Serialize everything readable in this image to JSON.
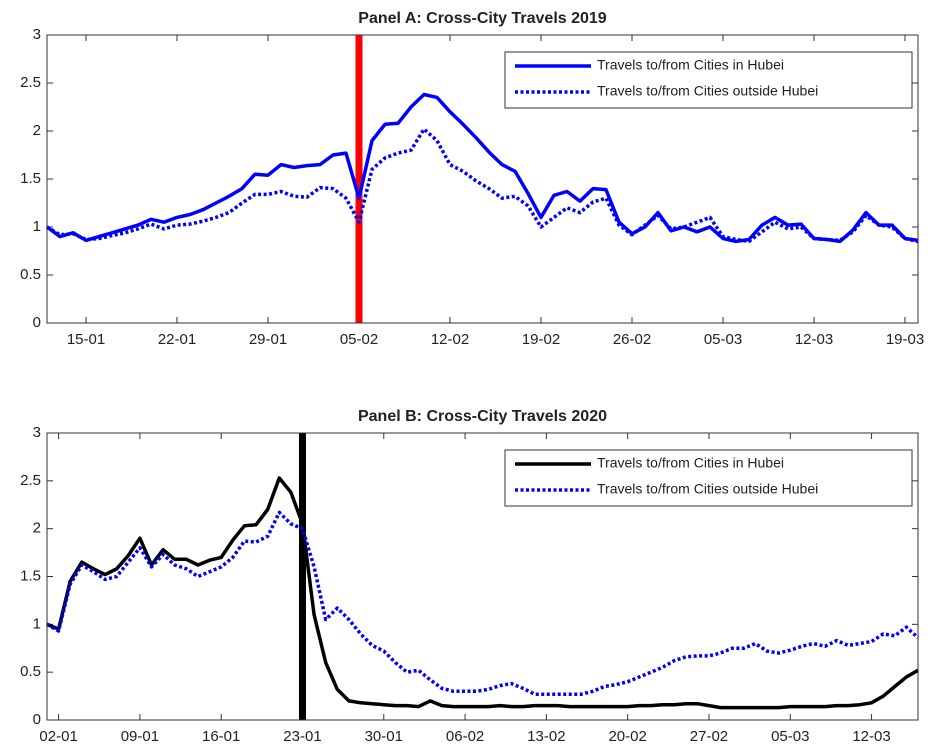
{
  "chart_data": [
    {
      "type": "line",
      "title": "Panel A: Cross-City Travels 2019",
      "categories": [
        null,
        null,
        null,
        "15-01",
        null,
        null,
        null,
        null,
        null,
        null,
        "22-01",
        null,
        null,
        null,
        null,
        null,
        null,
        "29-01",
        null,
        null,
        null,
        null,
        null,
        null,
        "05-02",
        null,
        null,
        null,
        null,
        null,
        null,
        "12-02",
        null,
        null,
        null,
        null,
        null,
        null,
        "19-02",
        null,
        null,
        null,
        null,
        null,
        null,
        "26-02",
        null,
        null,
        null,
        null,
        null,
        null,
        "05-03",
        null,
        null,
        null,
        null,
        null,
        null,
        "12-03",
        null,
        null,
        null,
        null,
        null,
        null,
        "19-03",
        null
      ],
      "series": [
        {
          "name": "Travels to/from Cities in Hubei",
          "color": "#0000ff",
          "linestyle": "solid",
          "values": [
            1.0,
            0.9,
            0.94,
            0.86,
            0.9,
            0.94,
            0.98,
            1.02,
            1.08,
            1.05,
            1.1,
            1.13,
            1.18,
            1.25,
            1.32,
            1.4,
            1.55,
            1.54,
            1.65,
            1.62,
            1.64,
            1.65,
            1.75,
            1.77,
            1.3,
            1.9,
            2.07,
            2.08,
            2.25,
            2.38,
            2.35,
            2.2,
            2.07,
            1.93,
            1.78,
            1.65,
            1.58,
            1.35,
            1.1,
            1.33,
            1.37,
            1.27,
            1.4,
            1.39,
            1.05,
            0.93,
            1.0,
            1.15,
            0.96,
            1.0,
            0.95,
            1.0,
            0.88,
            0.85,
            0.87,
            1.02,
            1.1,
            1.02,
            1.03,
            0.88,
            0.87,
            0.85,
            0.97,
            1.15,
            1.02,
            1.02,
            0.88,
            0.86
          ]
        },
        {
          "name": "Travels to/from Cities outside Hubei",
          "color": "#0000ff",
          "linestyle": "dotted",
          "values": [
            1.0,
            0.92,
            0.93,
            0.87,
            0.88,
            0.91,
            0.94,
            0.98,
            1.03,
            0.98,
            1.02,
            1.03,
            1.06,
            1.1,
            1.15,
            1.25,
            1.34,
            1.34,
            1.37,
            1.32,
            1.31,
            1.41,
            1.4,
            1.3,
            1.05,
            1.6,
            1.72,
            1.77,
            1.8,
            2.02,
            1.9,
            1.65,
            1.58,
            1.48,
            1.4,
            1.3,
            1.32,
            1.22,
            1.0,
            1.1,
            1.2,
            1.15,
            1.26,
            1.3,
            1.02,
            0.92,
            1.02,
            1.12,
            0.98,
            1.0,
            1.05,
            1.1,
            0.9,
            0.87,
            0.85,
            0.95,
            1.05,
            0.98,
            1.0,
            0.88,
            0.87,
            0.86,
            0.95,
            1.12,
            1.02,
            1.0,
            0.88,
            0.85
          ]
        }
      ],
      "ylim": [
        0,
        3
      ],
      "yticks": [
        0,
        0.5,
        1,
        1.5,
        2,
        2.5,
        3
      ],
      "vline": {
        "category": "05-02",
        "color": "#ff0000"
      },
      "legend": "upper right"
    },
    {
      "type": "line",
      "title": "Panel B: Cross-City Travels 2020",
      "categories": [
        null,
        "02-01",
        null,
        null,
        null,
        null,
        null,
        null,
        "09-01",
        null,
        null,
        null,
        null,
        null,
        null,
        "16-01",
        null,
        null,
        null,
        null,
        null,
        null,
        "23-01",
        null,
        null,
        null,
        null,
        null,
        null,
        "30-01",
        null,
        null,
        null,
        null,
        null,
        null,
        "06-02",
        null,
        null,
        null,
        null,
        null,
        null,
        "13-02",
        null,
        null,
        null,
        null,
        null,
        null,
        "20-02",
        null,
        null,
        null,
        null,
        null,
        null,
        "27-02",
        null,
        null,
        null,
        null,
        null,
        null,
        "05-03",
        null,
        null,
        null,
        null,
        null,
        null,
        "12-03",
        null,
        null,
        null,
        null
      ],
      "series": [
        {
          "name": "Travels to/from Cities in Hubei",
          "color": "#000000",
          "linestyle": "solid",
          "values": [
            1.0,
            0.95,
            1.45,
            1.65,
            1.58,
            1.52,
            1.58,
            1.72,
            1.9,
            1.62,
            1.78,
            1.68,
            1.68,
            1.62,
            1.67,
            1.7,
            1.88,
            2.03,
            2.04,
            2.2,
            2.53,
            2.38,
            2.05,
            1.1,
            0.6,
            0.32,
            0.2,
            0.18,
            0.17,
            0.16,
            0.15,
            0.15,
            0.14,
            0.2,
            0.15,
            0.14,
            0.14,
            0.14,
            0.14,
            0.15,
            0.14,
            0.14,
            0.15,
            0.15,
            0.15,
            0.14,
            0.14,
            0.14,
            0.14,
            0.14,
            0.14,
            0.15,
            0.15,
            0.16,
            0.16,
            0.17,
            0.17,
            0.15,
            0.13,
            0.13,
            0.13,
            0.13,
            0.13,
            0.13,
            0.14,
            0.14,
            0.14,
            0.14,
            0.15,
            0.15,
            0.16,
            0.18,
            0.25,
            0.35,
            0.45,
            0.52
          ]
        },
        {
          "name": "Travels to/from Cities outside Hubei",
          "color": "#0000ff",
          "linestyle": "dotted",
          "values": [
            1.0,
            0.93,
            1.42,
            1.62,
            1.55,
            1.47,
            1.5,
            1.65,
            1.8,
            1.6,
            1.73,
            1.62,
            1.58,
            1.5,
            1.55,
            1.6,
            1.7,
            1.87,
            1.86,
            1.92,
            2.17,
            2.05,
            2.0,
            1.6,
            1.05,
            1.17,
            1.05,
            0.9,
            0.78,
            0.72,
            0.6,
            0.5,
            0.52,
            0.42,
            0.33,
            0.3,
            0.3,
            0.3,
            0.32,
            0.36,
            0.38,
            0.33,
            0.27,
            0.27,
            0.27,
            0.27,
            0.27,
            0.3,
            0.35,
            0.37,
            0.4,
            0.45,
            0.5,
            0.55,
            0.62,
            0.66,
            0.67,
            0.67,
            0.7,
            0.75,
            0.75,
            0.8,
            0.72,
            0.7,
            0.73,
            0.77,
            0.8,
            0.77,
            0.83,
            0.78,
            0.8,
            0.82,
            0.9,
            0.88,
            0.97,
            0.86
          ]
        }
      ],
      "ylim": [
        0,
        3
      ],
      "yticks": [
        0,
        0.5,
        1,
        1.5,
        2,
        2.5,
        3
      ],
      "vline": {
        "category": "23-01",
        "color": "#000000"
      },
      "legend": "upper right"
    }
  ]
}
